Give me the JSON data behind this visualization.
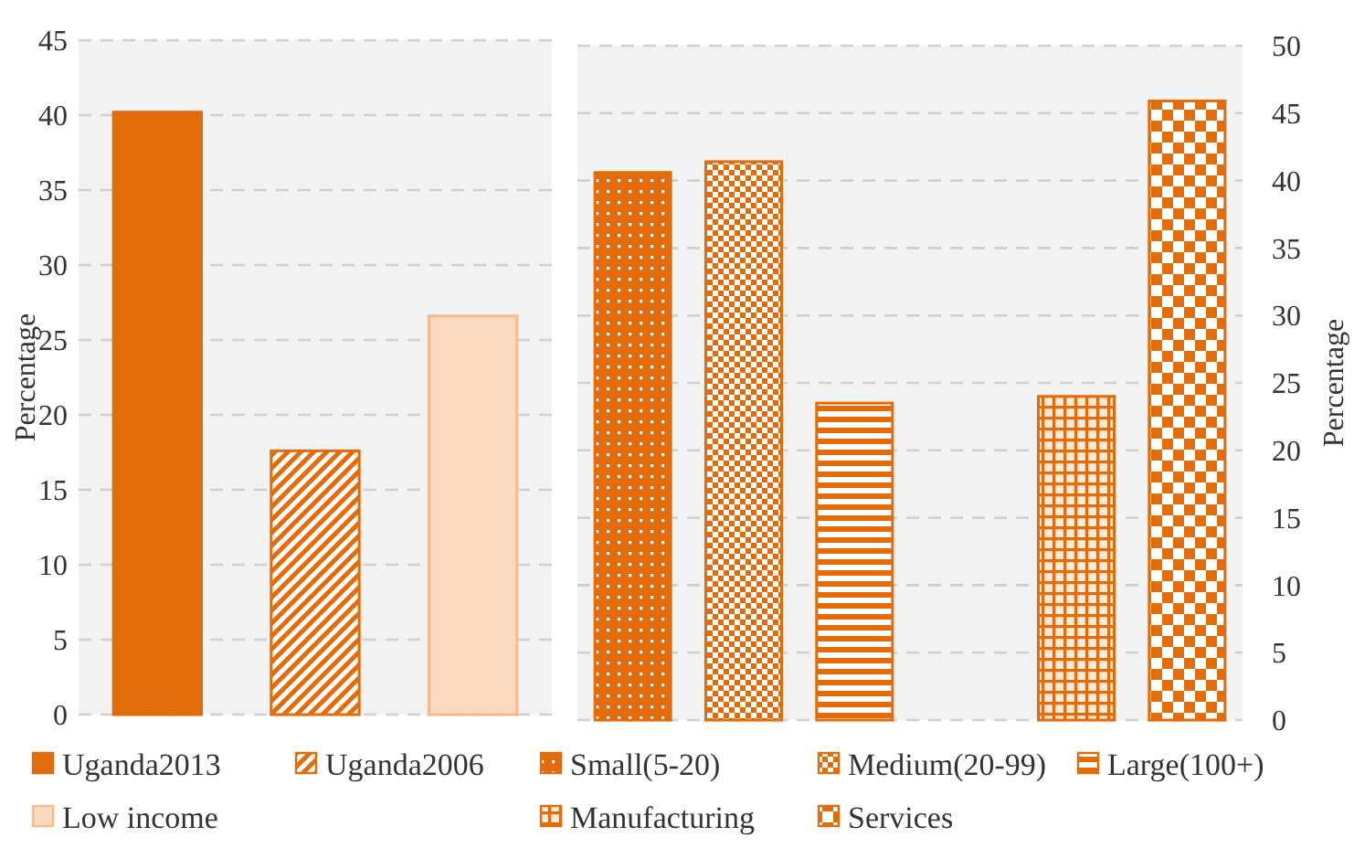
{
  "chart_data": [
    {
      "type": "bar",
      "ylabel": "Percentage",
      "categories": [
        null,
        null,
        null
      ],
      "ylim": [
        0,
        45
      ],
      "yticks": [
        0,
        5,
        10,
        15,
        20,
        25,
        30,
        35,
        40,
        45
      ],
      "grid": "y",
      "legend": "bottom",
      "series": [
        {
          "name": "Uganda2013",
          "color": "#e36c0a",
          "values": [
            40.2,
            null,
            null
          ]
        },
        {
          "name": "Uganda2006",
          "color": "#e36c0a",
          "values": [
            null,
            17.6,
            null
          ]
        },
        {
          "name": "Low income",
          "color": "#fbd9be",
          "values": [
            null,
            null,
            26.6
          ]
        }
      ]
    },
    {
      "type": "bar",
      "y2label": "Percentage",
      "categories": [
        null,
        null,
        null,
        null,
        null,
        null
      ],
      "y2lim": [
        0,
        50
      ],
      "y2ticks": [
        0,
        5,
        10,
        15,
        20,
        25,
        30,
        35,
        40,
        45,
        50
      ],
      "grid": "y",
      "legend": "bottom",
      "series": [
        {
          "name": "Small(5-20)",
          "color": "#e36c0a",
          "axis": "y2",
          "values": [
            40.6,
            null,
            null,
            null,
            null,
            null
          ]
        },
        {
          "name": "Medium(20-99)",
          "color": "#e36c0a",
          "axis": "y2",
          "values": [
            null,
            41.4,
            null,
            null,
            null,
            null
          ]
        },
        {
          "name": "Large(100+)",
          "color": "#e36c0a",
          "axis": "y2",
          "values": [
            null,
            null,
            23.5,
            null,
            null,
            null
          ]
        },
        {
          "name": "Manufacturing",
          "color": "#e36c0a",
          "axis": "y2",
          "values": [
            null,
            null,
            null,
            null,
            24.0,
            null
          ]
        },
        {
          "name": "Services",
          "color": "#e36c0a",
          "axis": "y2",
          "values": [
            null,
            null,
            null,
            null,
            null,
            45.9
          ]
        }
      ]
    }
  ]
}
